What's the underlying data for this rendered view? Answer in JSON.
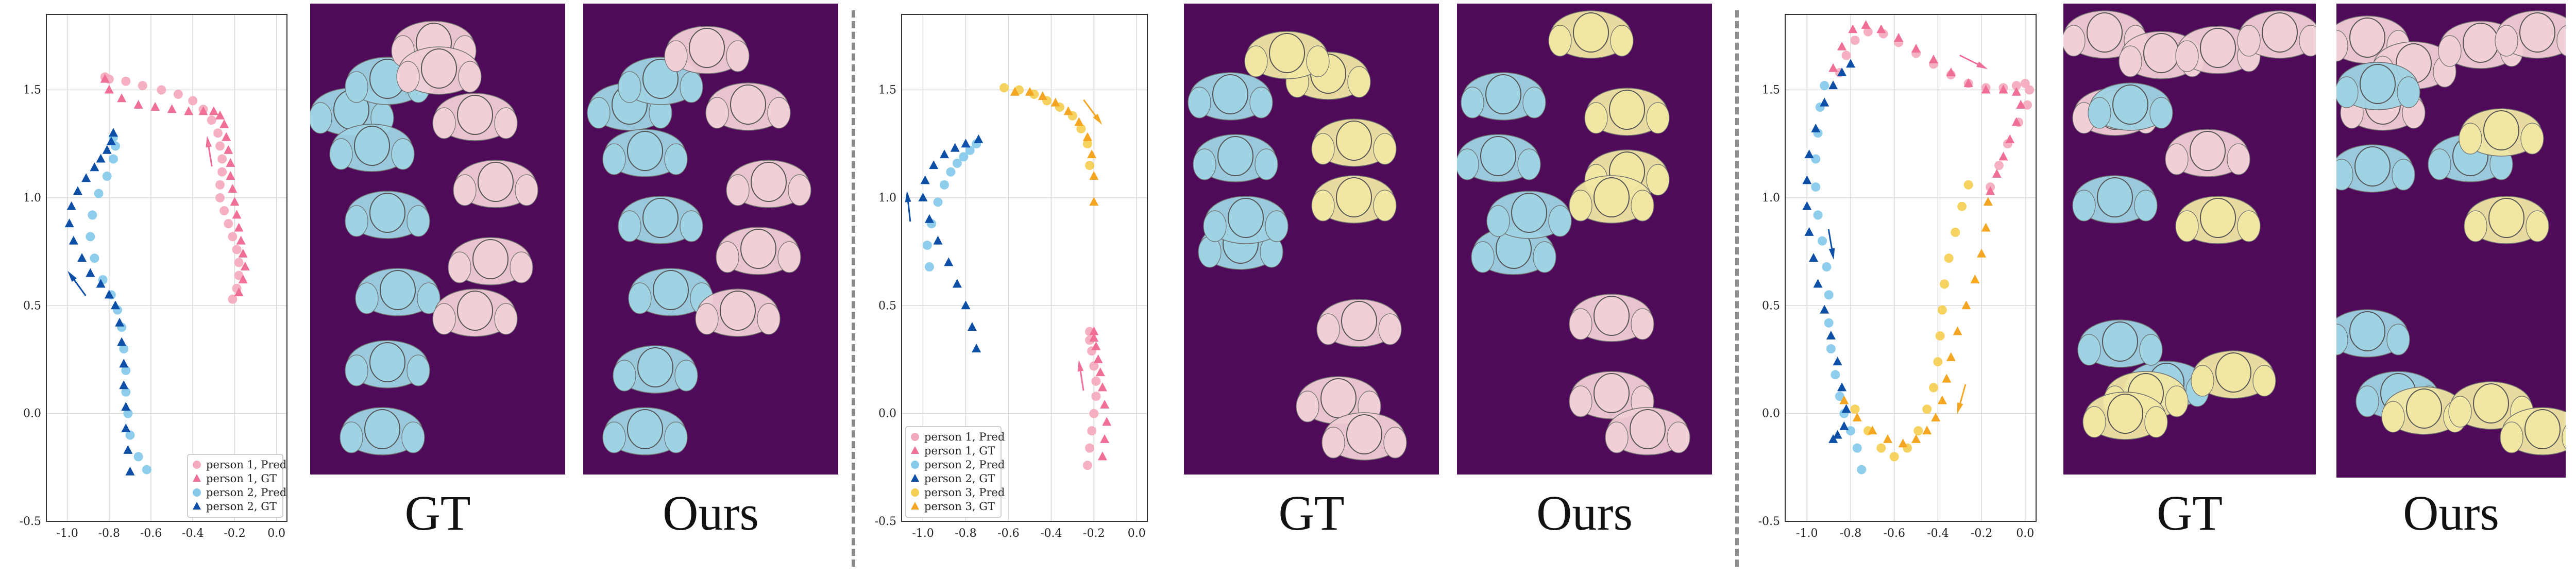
{
  "colors": {
    "person1_pred": "#f4aabd",
    "person1_gt": "#ef6f96",
    "person2_pred": "#86c9ea",
    "person2_gt": "#0d4fa6",
    "person3_pred": "#f5cf52",
    "person3_gt": "#f4a623",
    "render_bg": "#4f0b59",
    "body_pink": "#f1cfd6",
    "body_blue": "#9ed3e4",
    "body_yellow": "#f1e7a3"
  },
  "panels": [
    {
      "gt_caption": "GT",
      "ours_caption": "Ours"
    },
    {
      "gt_caption": "GT",
      "ours_caption": "Ours"
    },
    {
      "gt_caption": "GT",
      "ours_caption": "Ours"
    }
  ],
  "chart_data": [
    {
      "type": "scatter",
      "xlim": [
        -1.1,
        0.05
      ],
      "ylim": [
        -0.5,
        1.85
      ],
      "xticks": [
        "-1.0",
        "-0.8",
        "-0.6",
        "-0.4",
        "-0.2",
        "0.0"
      ],
      "yticks": [
        "-0.5",
        "0.0",
        "0.5",
        "1.0",
        "1.5"
      ],
      "grid": true,
      "legend_position": "bottom-right",
      "legend": [
        "person 1, Pred",
        "person 1, GT",
        "person 2, Pred",
        "person 2, GT"
      ],
      "series": [
        {
          "name": "person 1, Pred",
          "person": 1,
          "marker": "circle",
          "x": [
            -0.21,
            -0.19,
            -0.18,
            -0.18,
            -0.19,
            -0.21,
            -0.23,
            -0.25,
            -0.27,
            -0.27,
            -0.26,
            -0.26,
            -0.27,
            -0.28,
            -0.31,
            -0.35,
            -0.4,
            -0.47,
            -0.55,
            -0.64,
            -0.72,
            -0.8,
            -0.82
          ],
          "y": [
            0.53,
            0.58,
            0.64,
            0.7,
            0.76,
            0.82,
            0.88,
            0.94,
            1.0,
            1.06,
            1.12,
            1.18,
            1.24,
            1.3,
            1.36,
            1.41,
            1.45,
            1.48,
            1.5,
            1.52,
            1.54,
            1.55,
            1.56
          ]
        },
        {
          "name": "person 1, GT",
          "person": 1,
          "marker": "triangle",
          "x": [
            -0.18,
            -0.16,
            -0.15,
            -0.16,
            -0.17,
            -0.18,
            -0.19,
            -0.2,
            -0.21,
            -0.22,
            -0.22,
            -0.23,
            -0.24,
            -0.25,
            -0.27,
            -0.3,
            -0.35,
            -0.42,
            -0.5,
            -0.58,
            -0.66,
            -0.74,
            -0.8,
            -0.82
          ],
          "y": [
            0.56,
            0.62,
            0.68,
            0.74,
            0.8,
            0.86,
            0.92,
            0.98,
            1.04,
            1.1,
            1.16,
            1.22,
            1.28,
            1.34,
            1.38,
            1.4,
            1.4,
            1.4,
            1.41,
            1.42,
            1.43,
            1.46,
            1.5,
            1.55
          ]
        },
        {
          "name": "person 2, Pred",
          "person": 2,
          "marker": "circle",
          "x": [
            -0.62,
            -0.66,
            -0.7,
            -0.71,
            -0.72,
            -0.72,
            -0.73,
            -0.74,
            -0.76,
            -0.79,
            -0.83,
            -0.87,
            -0.89,
            -0.88,
            -0.85,
            -0.81,
            -0.78,
            -0.77,
            -0.78
          ],
          "y": [
            -0.26,
            -0.2,
            -0.1,
            0.0,
            0.1,
            0.2,
            0.3,
            0.4,
            0.48,
            0.55,
            0.62,
            0.72,
            0.82,
            0.92,
            1.02,
            1.1,
            1.18,
            1.24,
            1.28
          ]
        },
        {
          "name": "person 2, GT",
          "person": 2,
          "marker": "triangle",
          "x": [
            -0.7,
            -0.71,
            -0.72,
            -0.72,
            -0.73,
            -0.73,
            -0.74,
            -0.75,
            -0.77,
            -0.8,
            -0.84,
            -0.89,
            -0.93,
            -0.97,
            -0.99,
            -0.98,
            -0.95,
            -0.91,
            -0.87,
            -0.84,
            -0.81,
            -0.79,
            -0.78
          ],
          "y": [
            -0.27,
            -0.17,
            -0.07,
            0.03,
            0.13,
            0.23,
            0.33,
            0.42,
            0.5,
            0.55,
            0.6,
            0.65,
            0.72,
            0.8,
            0.88,
            0.96,
            1.03,
            1.09,
            1.14,
            1.18,
            1.22,
            1.26,
            1.3
          ]
        }
      ]
    },
    {
      "type": "scatter",
      "xlim": [
        -1.1,
        0.05
      ],
      "ylim": [
        -0.5,
        1.85
      ],
      "xticks": [
        "-1.0",
        "-0.8",
        "-0.6",
        "-0.4",
        "-0.2",
        "0.0"
      ],
      "yticks": [
        "-0.5",
        "0.0",
        "0.5",
        "1.0",
        "1.5"
      ],
      "grid": true,
      "legend_position": "bottom-left",
      "legend": [
        "person 1, Pred",
        "person 1, GT",
        "person 2, Pred",
        "person 2, GT",
        "person 3, Pred",
        "person 3, GT"
      ],
      "series": [
        {
          "name": "person 1, Pred",
          "person": 1,
          "marker": "circle",
          "x": [
            -0.23,
            -0.22,
            -0.21,
            -0.2,
            -0.19,
            -0.19,
            -0.2,
            -0.21,
            -0.22,
            -0.22
          ],
          "y": [
            -0.24,
            -0.16,
            -0.08,
            0.0,
            0.08,
            0.15,
            0.22,
            0.29,
            0.34,
            0.38
          ]
        },
        {
          "name": "person 1, GT",
          "person": 1,
          "marker": "triangle",
          "x": [
            -0.16,
            -0.15,
            -0.14,
            -0.15,
            -0.16,
            -0.17,
            -0.18,
            -0.19,
            -0.2,
            -0.2
          ],
          "y": [
            -0.2,
            -0.12,
            -0.04,
            0.04,
            0.12,
            0.19,
            0.25,
            0.31,
            0.35,
            0.38
          ]
        },
        {
          "name": "person 2, Pred",
          "person": 2,
          "marker": "circle",
          "x": [
            -0.97,
            -0.98,
            -0.96,
            -0.93,
            -0.9,
            -0.87,
            -0.84,
            -0.81,
            -0.78,
            -0.75
          ],
          "y": [
            0.68,
            0.78,
            0.88,
            0.98,
            1.06,
            1.12,
            1.16,
            1.19,
            1.22,
            1.25
          ]
        },
        {
          "name": "person 2, GT",
          "person": 2,
          "marker": "triangle",
          "x": [
            -0.75,
            -0.77,
            -0.8,
            -0.84,
            -0.88,
            -0.93,
            -0.97,
            -1.0,
            -0.99,
            -0.95,
            -0.9,
            -0.85,
            -0.8,
            -0.74
          ],
          "y": [
            0.3,
            0.4,
            0.5,
            0.6,
            0.7,
            0.8,
            0.9,
            1.0,
            1.08,
            1.15,
            1.2,
            1.23,
            1.25,
            1.27
          ]
        },
        {
          "name": "person 3, Pred",
          "person": 3,
          "marker": "circle",
          "x": [
            -0.62,
            -0.55,
            -0.48,
            -0.42,
            -0.36,
            -0.3,
            -0.26,
            -0.23,
            -0.22
          ],
          "y": [
            1.51,
            1.5,
            1.48,
            1.45,
            1.42,
            1.38,
            1.32,
            1.25,
            1.15
          ]
        },
        {
          "name": "person 3, GT",
          "person": 3,
          "marker": "triangle",
          "x": [
            -0.57,
            -0.5,
            -0.44,
            -0.38,
            -0.32,
            -0.27,
            -0.23,
            -0.21,
            -0.2,
            -0.2
          ],
          "y": [
            1.49,
            1.49,
            1.47,
            1.44,
            1.4,
            1.35,
            1.28,
            1.2,
            1.1,
            0.98
          ]
        }
      ]
    },
    {
      "type": "scatter",
      "xlim": [
        -1.1,
        0.05
      ],
      "ylim": [
        -0.5,
        1.85
      ],
      "xticks": [
        "-1.0",
        "-0.8",
        "-0.6",
        "-0.4",
        "-0.2",
        "0.0"
      ],
      "yticks": [
        "-0.5",
        "0.0",
        "0.5",
        "1.0",
        "1.5"
      ],
      "grid": true,
      "legend_position": "none",
      "legend": [],
      "series": [
        {
          "name": "person 1, Pred",
          "person": 1,
          "marker": "circle",
          "x": [
            -0.85,
            -0.82,
            -0.78,
            -0.72,
            -0.65,
            -0.58,
            -0.5,
            -0.42,
            -0.34,
            -0.26,
            -0.18,
            -0.1,
            -0.04,
            0.0,
            0.02,
            0.01,
            -0.03,
            -0.08,
            -0.12,
            -0.16
          ],
          "y": [
            1.58,
            1.66,
            1.73,
            1.77,
            1.76,
            1.72,
            1.67,
            1.62,
            1.57,
            1.53,
            1.51,
            1.51,
            1.52,
            1.53,
            1.5,
            1.43,
            1.35,
            1.25,
            1.15,
            1.05
          ]
        },
        {
          "name": "person 1, GT",
          "person": 1,
          "marker": "triangle",
          "x": [
            -0.88,
            -0.84,
            -0.79,
            -0.73,
            -0.66,
            -0.58,
            -0.5,
            -0.42,
            -0.34,
            -0.26,
            -0.18,
            -0.1,
            -0.04,
            -0.02,
            -0.04,
            -0.07,
            -0.1,
            -0.13,
            -0.16
          ],
          "y": [
            1.6,
            1.7,
            1.78,
            1.8,
            1.78,
            1.74,
            1.69,
            1.64,
            1.58,
            1.53,
            1.5,
            1.5,
            1.49,
            1.43,
            1.35,
            1.27,
            1.19,
            1.11,
            1.03
          ]
        },
        {
          "name": "person 2, Pred",
          "person": 2,
          "marker": "circle",
          "x": [
            -0.92,
            -0.94,
            -0.95,
            -0.96,
            -0.96,
            -0.95,
            -0.93,
            -0.91,
            -0.9,
            -0.9,
            -0.89,
            -0.87,
            -0.85,
            -0.83,
            -0.8,
            -0.77,
            -0.75
          ],
          "y": [
            1.52,
            1.42,
            1.3,
            1.18,
            1.05,
            0.92,
            0.8,
            0.68,
            0.55,
            0.42,
            0.3,
            0.18,
            0.08,
            0.0,
            -0.08,
            -0.16,
            -0.26
          ]
        },
        {
          "name": "person 2, GT",
          "person": 2,
          "marker": "triangle",
          "x": [
            -0.8,
            -0.84,
            -0.88,
            -0.92,
            -0.96,
            -0.99,
            -1.0,
            -1.0,
            -0.99,
            -0.97,
            -0.95,
            -0.92,
            -0.89,
            -0.86,
            -0.84,
            -0.82,
            -0.83,
            -0.86,
            -0.88
          ],
          "y": [
            1.62,
            1.58,
            1.52,
            1.44,
            1.32,
            1.2,
            1.08,
            0.96,
            0.84,
            0.72,
            0.6,
            0.48,
            0.36,
            0.24,
            0.12,
            0.02,
            -0.06,
            -0.1,
            -0.12
          ]
        },
        {
          "name": "person 3, Pred",
          "person": 3,
          "marker": "circle",
          "x": [
            -0.26,
            -0.29,
            -0.32,
            -0.35,
            -0.37,
            -0.38,
            -0.39,
            -0.4,
            -0.42,
            -0.45,
            -0.49,
            -0.54,
            -0.6,
            -0.66,
            -0.72,
            -0.78
          ],
          "y": [
            1.06,
            0.96,
            0.84,
            0.72,
            0.6,
            0.48,
            0.36,
            0.24,
            0.12,
            0.02,
            -0.08,
            -0.16,
            -0.2,
            -0.16,
            -0.08,
            0.02
          ]
        },
        {
          "name": "person 3, GT",
          "person": 3,
          "marker": "triangle",
          "x": [
            -0.17,
            -0.18,
            -0.2,
            -0.23,
            -0.27,
            -0.31,
            -0.34,
            -0.36,
            -0.38,
            -0.41,
            -0.45,
            -0.5,
            -0.56,
            -0.63,
            -0.7,
            -0.77,
            -0.83
          ],
          "y": [
            0.98,
            0.86,
            0.74,
            0.62,
            0.5,
            0.38,
            0.26,
            0.16,
            0.06,
            -0.02,
            -0.08,
            -0.12,
            -0.14,
            -0.12,
            -0.08,
            -0.02,
            0.06
          ]
        }
      ]
    }
  ]
}
